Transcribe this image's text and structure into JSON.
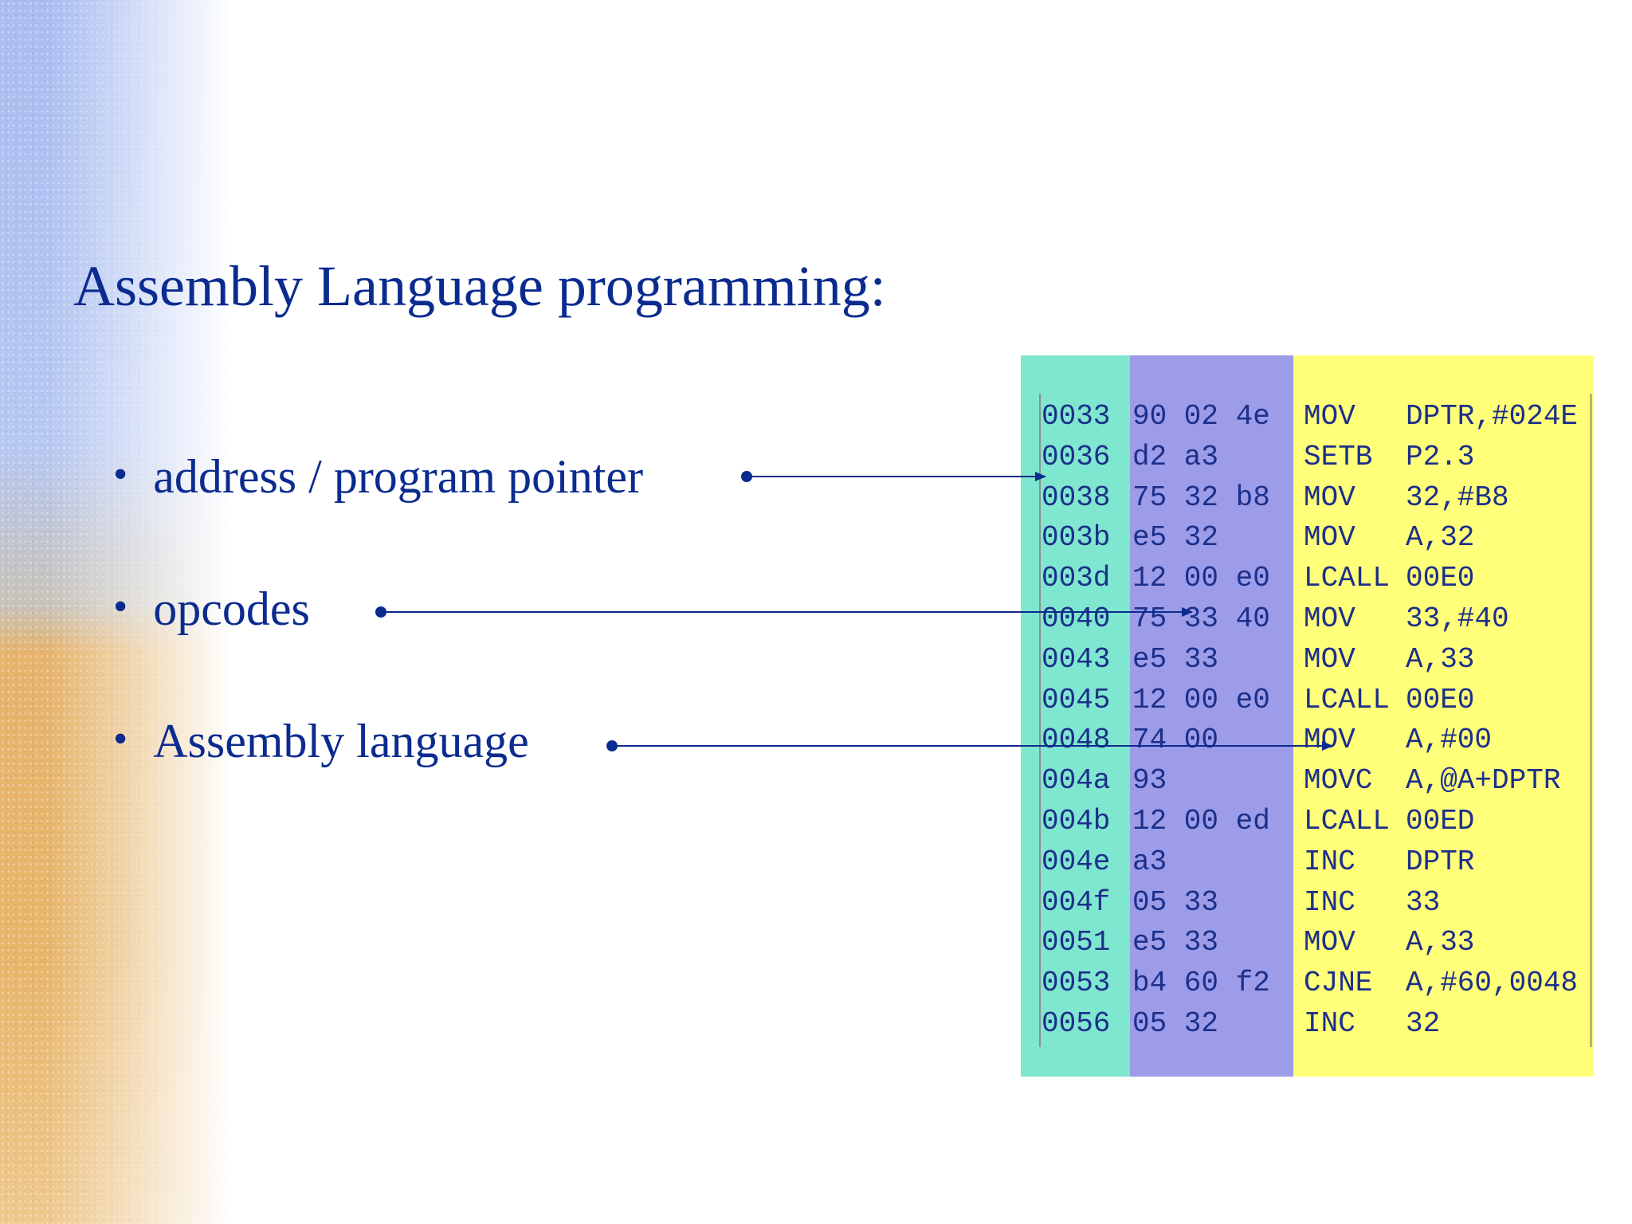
{
  "slide": {
    "title": "Assembly Language programming:",
    "bullets": [
      {
        "text": "address / program pointer"
      },
      {
        "text": "opcodes"
      },
      {
        "text": "Assembly language"
      }
    ],
    "bullet_glyph": "•",
    "colors": {
      "text": "#0b2b8f",
      "address_column": "#7fe6cf",
      "opcode_column": "#9c9ce8",
      "assembly_column": "#ffff7a",
      "arrow": "#0b2b8f"
    }
  },
  "code_listing": [
    {
      "addr": "0033",
      "op": "90 02 4e",
      "mn": "MOV",
      "arg": "DPTR,#024E"
    },
    {
      "addr": "0036",
      "op": "d2 a3",
      "mn": "SETB",
      "arg": "P2.3"
    },
    {
      "addr": "0038",
      "op": "75 32 b8",
      "mn": "MOV",
      "arg": "32,#B8"
    },
    {
      "addr": "003b",
      "op": "e5 32",
      "mn": "MOV",
      "arg": "A,32"
    },
    {
      "addr": "003d",
      "op": "12 00 e0",
      "mn": "LCALL",
      "arg": "00E0"
    },
    {
      "addr": "0040",
      "op": "75 33 40",
      "mn": "MOV",
      "arg": "33,#40"
    },
    {
      "addr": "0043",
      "op": "e5 33",
      "mn": "MOV",
      "arg": "A,33"
    },
    {
      "addr": "0045",
      "op": "12 00 e0",
      "mn": "LCALL",
      "arg": "00E0"
    },
    {
      "addr": "0048",
      "op": "74 00",
      "mn": "MOV",
      "arg": "A,#00"
    },
    {
      "addr": "004a",
      "op": "93",
      "mn": "MOVC",
      "arg": "A,@A+DPTR"
    },
    {
      "addr": "004b",
      "op": "12 00 ed",
      "mn": "LCALL",
      "arg": "00ED"
    },
    {
      "addr": "004e",
      "op": "a3",
      "mn": "INC",
      "arg": "DPTR"
    },
    {
      "addr": "004f",
      "op": "05 33",
      "mn": "INC",
      "arg": "33"
    },
    {
      "addr": "0051",
      "op": "e5 33",
      "mn": "MOV",
      "arg": "A,33"
    },
    {
      "addr": "0053",
      "op": "b4 60 f2",
      "mn": "CJNE",
      "arg": "A,#60,0048"
    },
    {
      "addr": "0056",
      "op": "05 32",
      "mn": "INC",
      "arg": "32"
    }
  ]
}
